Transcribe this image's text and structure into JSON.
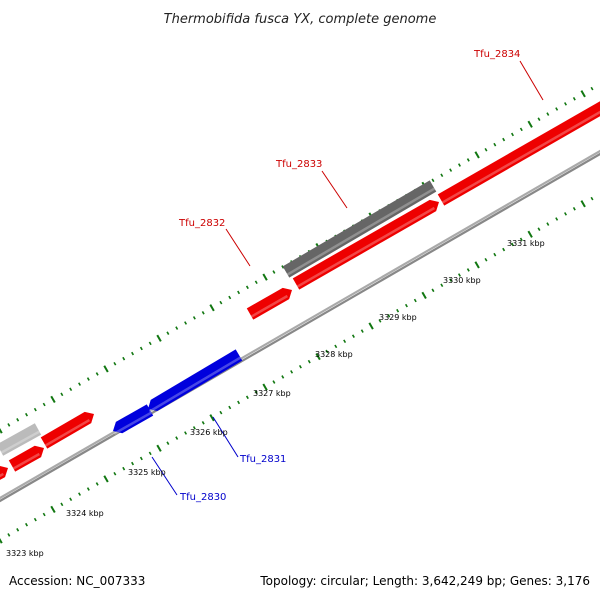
{
  "title": "Thermobifida fusca YX, complete genome",
  "accession": "Accession: NC_007333",
  "topology": "Topology: circular; Length: 3,642,249 bp; Genes: 3,176",
  "colors": {
    "forward_gene": "#ee0000",
    "reverse_gene": "#0000dd",
    "hypothetical_gene": "#666666",
    "faded_gene": "#bbbbbb",
    "backbone": "#888888",
    "tick": "#117711",
    "forward_label": "#cc0000",
    "reverse_label": "#0000cc",
    "leader_forward": "#cc0000",
    "leader_reverse": "#0000cc"
  },
  "scale_labels": [
    "3323 kbp",
    "3324 kbp",
    "3325 kbp",
    "3326 kbp",
    "3327 kbp",
    "3328 kbp",
    "3329 kbp",
    "3330 kbp",
    "3331 kbp"
  ],
  "gene_labels": [
    {
      "id": "Tfu_2834",
      "strand": "forward"
    },
    {
      "id": "Tfu_2833",
      "strand": "forward"
    },
    {
      "id": "Tfu_2832",
      "strand": "forward"
    },
    {
      "id": "Tfu_2831",
      "strand": "reverse"
    },
    {
      "id": "Tfu_2830",
      "strand": "reverse"
    }
  ]
}
